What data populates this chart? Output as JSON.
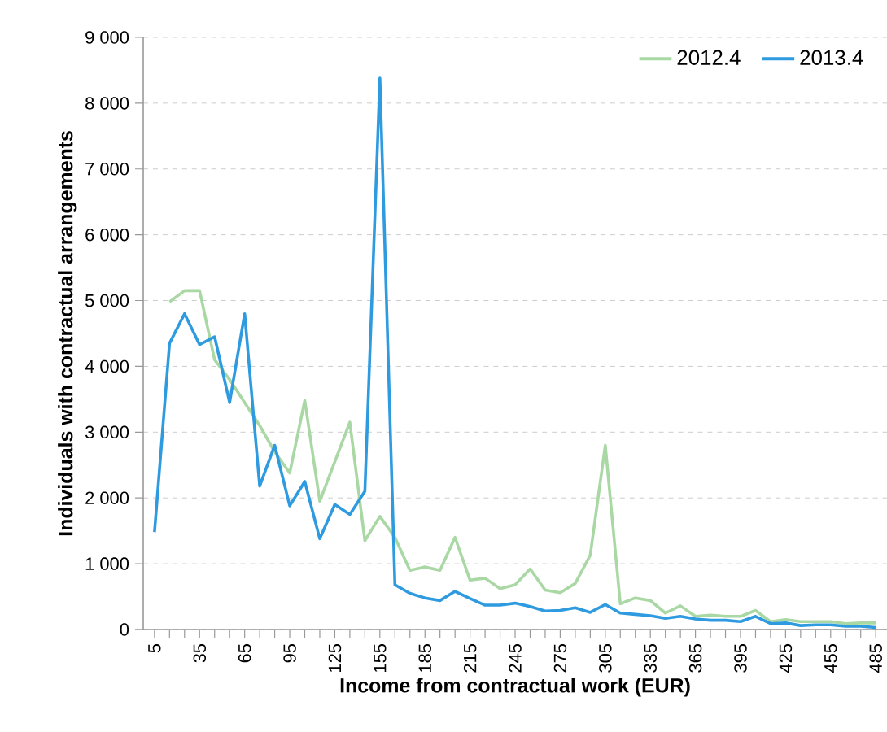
{
  "chart_data": {
    "type": "line",
    "xlabel": "Income from contractual work (EUR)",
    "ylabel": "Individuals with contractual arrangements",
    "categories": [
      "5",
      null,
      null,
      "35",
      null,
      null,
      "65",
      null,
      null,
      "95",
      null,
      null,
      "125",
      null,
      null,
      "155",
      null,
      null,
      "185",
      null,
      null,
      "215",
      null,
      null,
      "245",
      null,
      null,
      "275",
      null,
      null,
      "305",
      null,
      null,
      "335",
      null,
      null,
      "365",
      null,
      null,
      "395",
      null,
      null,
      "425",
      null,
      null,
      "455",
      null,
      null,
      "485"
    ],
    "series": [
      {
        "name": "2012.4",
        "color": "#a9d8a4",
        "values": [
          null,
          4980,
          5150,
          5150,
          4100,
          3800,
          3450,
          3100,
          2700,
          2380,
          3480,
          1950,
          2550,
          3150,
          1350,
          1720,
          1400,
          900,
          950,
          900,
          1400,
          750,
          780,
          620,
          680,
          920,
          600,
          560,
          700,
          1130,
          2800,
          390,
          480,
          440,
          250,
          360,
          200,
          220,
          200,
          200,
          290,
          120,
          150,
          120,
          120,
          120,
          90,
          100,
          100
        ]
      },
      {
        "name": "2013.4",
        "color": "#2e9ae0",
        "values": [
          1480,
          4350,
          4800,
          4330,
          4450,
          3450,
          4800,
          2180,
          2800,
          1880,
          2250,
          1380,
          1900,
          1750,
          2100,
          8380,
          680,
          550,
          480,
          440,
          580,
          470,
          370,
          370,
          400,
          350,
          280,
          290,
          330,
          260,
          380,
          250,
          230,
          210,
          170,
          200,
          160,
          140,
          140,
          120,
          200,
          90,
          100,
          60,
          70,
          70,
          50,
          50,
          30
        ]
      }
    ],
    "ylim": [
      0,
      9000
    ],
    "yticks": [
      0,
      {
        "value": 1000,
        "label": "1 000"
      },
      {
        "value": 2000,
        "label": "2 000"
      },
      {
        "value": 3000,
        "label": "3 000"
      },
      {
        "value": 4000,
        "label": "4 000"
      },
      {
        "value": 5000,
        "label": "5 000"
      },
      {
        "value": 6000,
        "label": "6 000"
      },
      {
        "value": 7000,
        "label": "7 000"
      },
      {
        "value": 8000,
        "label": "8 000"
      },
      {
        "value": 9000,
        "label": "9 000"
      }
    ],
    "grid": "y",
    "legend": "top right",
    "marker": "none",
    "line_style": "solid"
  }
}
